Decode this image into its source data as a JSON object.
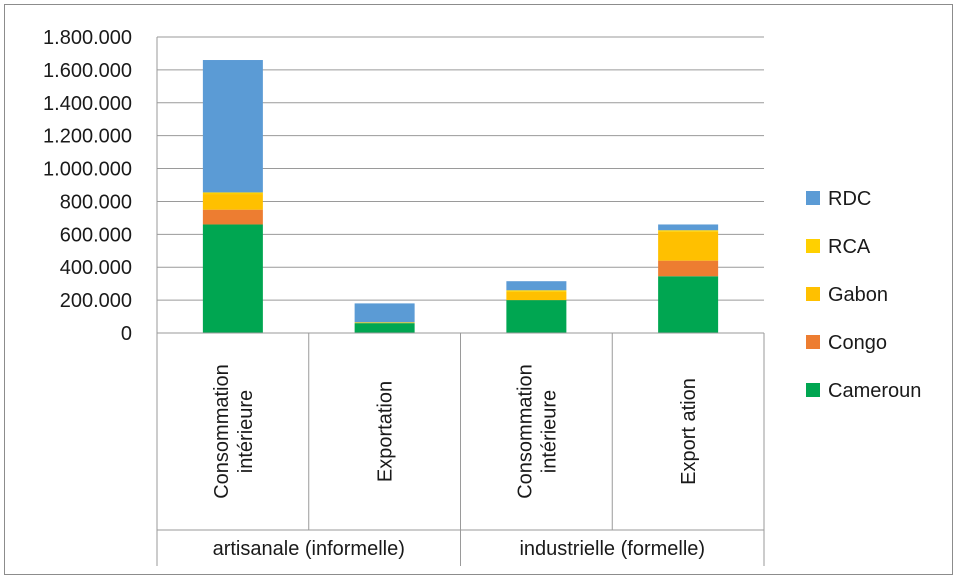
{
  "chart_data": {
    "type": "bar",
    "stacked": true,
    "ylim": [
      0,
      1800000
    ],
    "yticks": [
      {
        "value": 0,
        "label": "0"
      },
      {
        "value": 200000,
        "label": "200.000"
      },
      {
        "value": 400000,
        "label": "400.000"
      },
      {
        "value": 600000,
        "label": "600.000"
      },
      {
        "value": 800000,
        "label": "800.000"
      },
      {
        "value": 1000000,
        "label": "1.000.000"
      },
      {
        "value": 1200000,
        "label": "1.200.000"
      },
      {
        "value": 1400000,
        "label": "1.400.000"
      },
      {
        "value": 1600000,
        "label": "1.600.000"
      },
      {
        "value": 1800000,
        "label": "1.800.000"
      }
    ],
    "grid": true,
    "legend_position": "right",
    "groups": [
      {
        "label": "artisanale (informelle)",
        "categories": [
          "Consommation intérieure",
          "Exportation"
        ]
      },
      {
        "label": "industrielle (formelle)",
        "categories": [
          "Consommation intérieure",
          "Exportation"
        ]
      }
    ],
    "categories": [
      [
        "Consommation",
        "intérieure"
      ],
      [
        "Exportation"
      ],
      [
        "Consommation",
        "intérieure"
      ],
      [
        "Export ation"
      ]
    ],
    "series": [
      {
        "name": "Cameroun",
        "color": "#00a651",
        "values": [
          660000,
          60000,
          200000,
          345000
        ]
      },
      {
        "name": "Congo",
        "color": "#ed7d31",
        "values": [
          90000,
          0,
          0,
          95000
        ]
      },
      {
        "name": "Gabon",
        "color": "#ffc000",
        "values": [
          95000,
          0,
          50000,
          175000
        ]
      },
      {
        "name": "RCA",
        "color": "#ffd000",
        "values": [
          10000,
          5000,
          10000,
          10000
        ]
      },
      {
        "name": "RDC",
        "color": "#5b9bd5",
        "values": [
          805000,
          115000,
          55000,
          35000
        ]
      }
    ],
    "legend_order": [
      "RDC",
      "RCA",
      "Gabon",
      "Congo",
      "Cameroun"
    ]
  }
}
